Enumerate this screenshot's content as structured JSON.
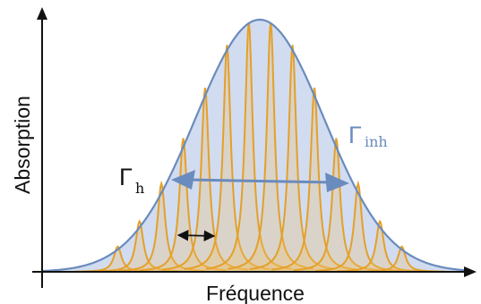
{
  "axes": {
    "x_label": "Fréquence",
    "y_label": "Absorption"
  },
  "annotations": {
    "homogeneous": {
      "symbol": "Γ",
      "subscript": "h"
    },
    "inhomogeneous": {
      "symbol": "Γ",
      "subscript": "inh"
    }
  },
  "colors": {
    "envelope_stroke": "#6a8bbd",
    "envelope_fill": "#c9d6ee",
    "line_stroke": "#e4a028",
    "line_fill": "#f0c060",
    "axis": "#111111",
    "inh_label": "#6a8bbd",
    "h_label": "#111111"
  },
  "diagram": {
    "envelope_shape": "gaussian",
    "line_shape": "lorentzian",
    "line_count": 14,
    "line_amplitudes": [
      0.1,
      0.2,
      0.35,
      0.53,
      0.73,
      0.9,
      0.99,
      0.99,
      0.9,
      0.73,
      0.53,
      0.35,
      0.2,
      0.1
    ]
  }
}
